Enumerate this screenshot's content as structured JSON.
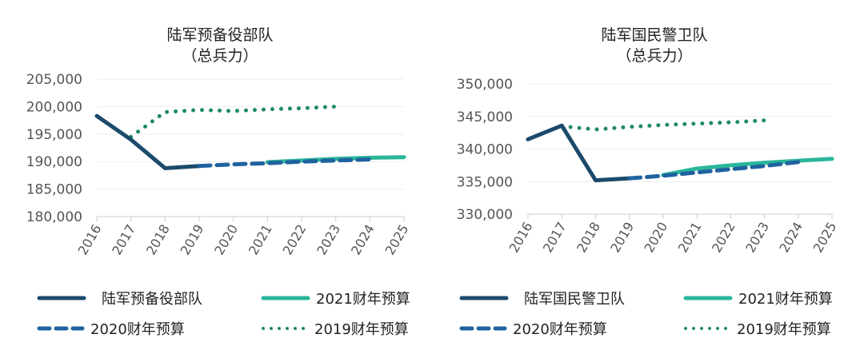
{
  "colors": {
    "actual": "#1b4a6b",
    "fy2021": "#2ab59a",
    "fy2020": "#1f62a0",
    "fy2019": "#1e8a63",
    "grid": "#eeeeee",
    "axis": "#cccccc"
  },
  "chart_data": [
    {
      "type": "line",
      "title": "陆军预备役部队",
      "subtitle": "（总兵力）",
      "x": [
        "2016",
        "2017",
        "2018",
        "2019",
        "2020",
        "2021",
        "2022",
        "2023",
        "2024",
        "2025"
      ],
      "ylim": [
        180000,
        205000
      ],
      "yticks": [
        "180,000",
        "185,000",
        "190,000",
        "195,000",
        "200,000",
        "205,000"
      ],
      "ytick_values": [
        180000,
        185000,
        190000,
        195000,
        200000,
        205000
      ],
      "grid": true,
      "legend_position": "bottom",
      "series": [
        {
          "name": "陆军预备役部队",
          "key": "actual",
          "style": "solid",
          "values": [
            198300,
            194000,
            188800,
            189200,
            null,
            null,
            null,
            null,
            null,
            null
          ]
        },
        {
          "name": "2021财年预算",
          "key": "fy2021",
          "style": "solid",
          "values": [
            null,
            null,
            null,
            null,
            null,
            189900,
            190200,
            190500,
            190700,
            190800
          ]
        },
        {
          "name": "2020财年预算",
          "key": "fy2020",
          "style": "dashed",
          "values": [
            null,
            null,
            null,
            189200,
            189500,
            189700,
            190000,
            190200,
            190400,
            null
          ]
        },
        {
          "name": "2019财年预算",
          "key": "fy2019",
          "style": "dotted",
          "values": [
            null,
            194500,
            199000,
            199400,
            199200,
            199500,
            199700,
            200000,
            null,
            null
          ]
        }
      ]
    },
    {
      "type": "line",
      "title": "陆军国民警卫队",
      "subtitle": "（总兵力）",
      "x": [
        "2016",
        "2017",
        "2018",
        "2019",
        "2020",
        "2021",
        "2022",
        "2023",
        "2024",
        "2025"
      ],
      "ylim": [
        330000,
        350000
      ],
      "yticks": [
        "330,000",
        "335,000",
        "340,000",
        "345,000",
        "350,000"
      ],
      "ytick_values": [
        330000,
        335000,
        340000,
        345000,
        350000
      ],
      "grid": true,
      "legend_position": "bottom",
      "series": [
        {
          "name": "陆军国民警卫队",
          "key": "actual",
          "style": "solid",
          "values": [
            341500,
            343600,
            335200,
            335500,
            null,
            null,
            null,
            null,
            null,
            null
          ]
        },
        {
          "name": "2021财年预算",
          "key": "fy2021",
          "style": "solid",
          "values": [
            null,
            null,
            null,
            null,
            336000,
            337000,
            337500,
            337900,
            338200,
            338500
          ]
        },
        {
          "name": "2020财年预算",
          "key": "fy2020",
          "style": "dashed",
          "values": [
            null,
            null,
            null,
            335500,
            335900,
            336400,
            336900,
            337400,
            338000,
            null
          ]
        },
        {
          "name": "2019财年预算",
          "key": "fy2019",
          "style": "dotted",
          "values": [
            null,
            343500,
            343000,
            343400,
            343700,
            343900,
            344100,
            344400,
            null,
            null
          ]
        }
      ]
    }
  ]
}
